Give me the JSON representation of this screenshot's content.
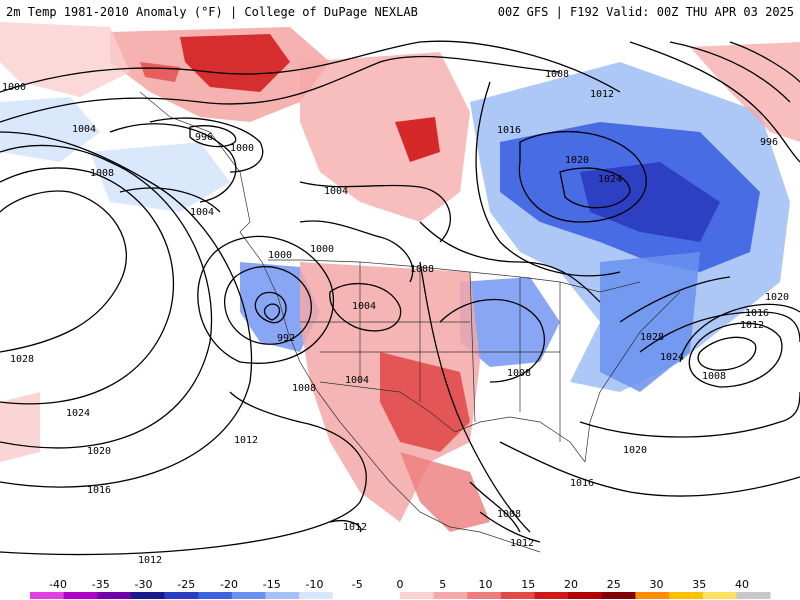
{
  "header": {
    "title_left": "2m Temp 1981-2010 Anomaly (°F) | College of DuPage NEXLAB",
    "title_right": "00Z GFS | F192 Valid: 00Z THU APR 03 2025"
  },
  "legend": {
    "ticks": [
      "-40",
      "-35",
      "-30",
      "-25",
      "-20",
      "-15",
      "-10",
      "-5",
      "0",
      "5",
      "10",
      "15",
      "20",
      "25",
      "30",
      "35",
      "40"
    ],
    "colors": [
      "#e040e0",
      "#b000c8",
      "#7000a8",
      "#1a1a8c",
      "#2a3cc0",
      "#3c62e0",
      "#6a90f0",
      "#a4c2f6",
      "#d6e6fb",
      "#ffffff",
      "#ffffff",
      "#fbd0d0",
      "#f5a8a8",
      "#ee7c7c",
      "#e24a4a",
      "#d01818",
      "#b00000",
      "#800000",
      "#ff8c00",
      "#ffc000",
      "#ffe060",
      "#c8c8c8"
    ]
  },
  "isobar_labels": [
    "1008",
    "1012",
    "996",
    "1000",
    "1004",
    "1008",
    "1000",
    "1004",
    "1016",
    "1020",
    "1024",
    "1004",
    "996",
    "1004",
    "1000",
    "1000",
    "1008",
    "992",
    "1028",
    "1024",
    "1004",
    "1008",
    "1020",
    "1012",
    "1016",
    "1008",
    "1028",
    "1024",
    "1020",
    "1016",
    "1012",
    "1008",
    "1020",
    "1016",
    "1008",
    "1012",
    "1012",
    "1012"
  ],
  "map": {
    "ocean_color": "#ffffff",
    "warm_anomaly_color": "#f08a8a",
    "cold_anomaly_color": "#6a90f0",
    "strong_warm_color": "#d01010",
    "strong_cold_color": "#3050d8",
    "contour_color": "#000000",
    "border_color": "#333333"
  }
}
